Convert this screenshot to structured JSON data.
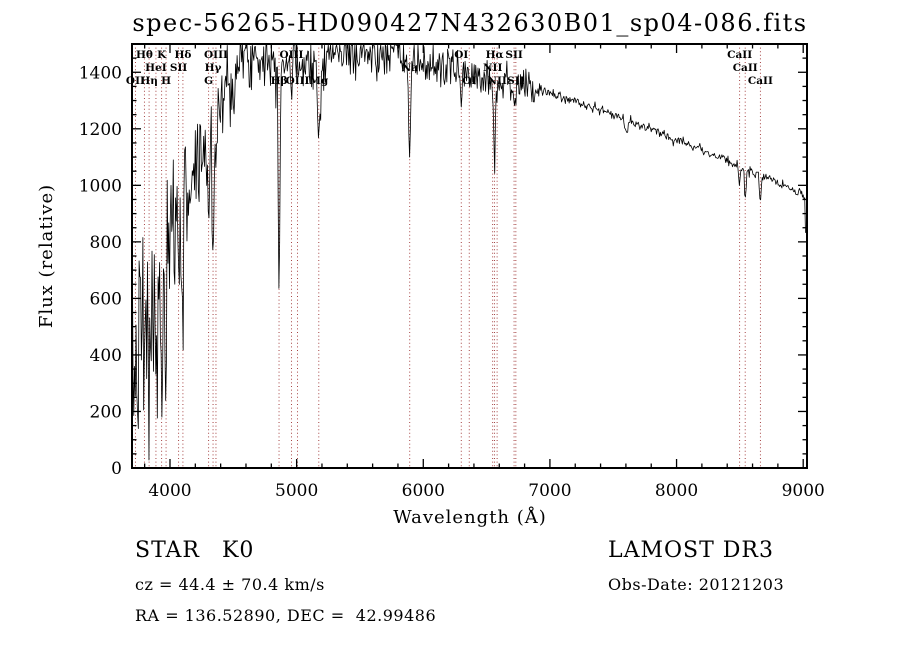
{
  "annotations": {
    "object_class": "STAR",
    "subclass": "K0",
    "survey": "LAMOST DR3",
    "cz": "cz = 44.4 ± 70.4 km/s",
    "obs_date": "Obs-Date: 20121203",
    "coordinates": "RA = 136.52890, DEC =  42.99486"
  },
  "chart_data": {
    "type": "line",
    "title": "spec-56265-HD090427N432630B01_sp04-086.fits",
    "xlabel": "Wavelength (Å)",
    "ylabel": "Flux (relative)",
    "xlim": [
      3700,
      9030
    ],
    "ylim": [
      0,
      1500
    ],
    "xticks": [
      4000,
      5000,
      6000,
      7000,
      8000,
      9000
    ],
    "yticks": [
      0,
      200,
      400,
      600,
      800,
      1000,
      1200,
      1400
    ],
    "x_minor_step": 200,
    "y_minor_step": 50,
    "grid": false,
    "legend": "none",
    "colors": {
      "spectrum": "#000000",
      "marker_line": "#9c2f2f",
      "axis": "#000000",
      "background": "#ffffff"
    },
    "spectrum": {
      "seed": 7,
      "step": 6,
      "clip": [
        3,
        1497
      ],
      "continuum": [
        [
          3700,
          310
        ],
        [
          3720,
          390
        ],
        [
          3750,
          430
        ],
        [
          3800,
          520
        ],
        [
          3850,
          540
        ],
        [
          3900,
          560
        ],
        [
          3950,
          620
        ],
        [
          4000,
          760
        ],
        [
          4050,
          880
        ],
        [
          4100,
          940
        ],
        [
          4150,
          1000
        ],
        [
          4200,
          1060
        ],
        [
          4250,
          1110
        ],
        [
          4300,
          1160
        ],
        [
          4350,
          1230
        ],
        [
          4400,
          1300
        ],
        [
          4450,
          1350
        ],
        [
          4500,
          1400
        ],
        [
          4550,
          1430
        ],
        [
          4600,
          1460
        ],
        [
          4700,
          1470
        ],
        [
          4800,
          1445
        ],
        [
          4900,
          1435
        ],
        [
          5000,
          1440
        ],
        [
          5100,
          1450
        ],
        [
          5200,
          1460
        ],
        [
          5300,
          1470
        ],
        [
          5400,
          1470
        ],
        [
          5500,
          1465
        ],
        [
          5600,
          1462
        ],
        [
          5700,
          1465
        ],
        [
          5800,
          1460
        ],
        [
          5900,
          1432
        ],
        [
          6000,
          1430
        ],
        [
          6100,
          1420
        ],
        [
          6200,
          1412
        ],
        [
          6300,
          1402
        ],
        [
          6400,
          1395
        ],
        [
          6500,
          1386
        ],
        [
          6600,
          1372
        ],
        [
          6700,
          1360
        ],
        [
          6800,
          1352
        ],
        [
          6900,
          1340
        ],
        [
          7000,
          1326
        ],
        [
          7100,
          1312
        ],
        [
          7200,
          1296
        ],
        [
          7300,
          1281
        ],
        [
          7400,
          1266
        ],
        [
          7500,
          1250
        ],
        [
          7600,
          1232
        ],
        [
          7700,
          1215
        ],
        [
          7800,
          1196
        ],
        [
          7900,
          1180
        ],
        [
          8000,
          1164
        ],
        [
          8100,
          1146
        ],
        [
          8200,
          1126
        ],
        [
          8300,
          1106
        ],
        [
          8400,
          1086
        ],
        [
          8500,
          1066
        ],
        [
          8600,
          1046
        ],
        [
          8700,
          1026
        ],
        [
          8800,
          1006
        ],
        [
          8900,
          986
        ],
        [
          9000,
          966
        ],
        [
          9006,
          958
        ],
        [
          9012,
          950
        ],
        [
          9018,
          830
        ]
      ],
      "noise": [
        [
          3700,
          185
        ],
        [
          3750,
          190
        ],
        [
          3850,
          170
        ],
        [
          3950,
          150
        ],
        [
          4050,
          130
        ],
        [
          4150,
          112
        ],
        [
          4300,
          95
        ],
        [
          4500,
          72
        ],
        [
          4700,
          56
        ],
        [
          5000,
          50
        ],
        [
          5400,
          46
        ],
        [
          5800,
          42
        ],
        [
          6200,
          38
        ],
        [
          6600,
          32
        ],
        [
          6850,
          26
        ],
        [
          6950,
          14
        ],
        [
          7000,
          9
        ],
        [
          7500,
          8
        ],
        [
          8000,
          8
        ],
        [
          8600,
          9
        ],
        [
          9000,
          7
        ],
        [
          9018,
          7
        ]
      ],
      "absorption_features": [
        {
          "center": 3727,
          "depth": 120,
          "width": 5
        },
        {
          "center": 3798,
          "depth": 260,
          "width": 6
        },
        {
          "center": 3835,
          "depth": 290,
          "width": 6
        },
        {
          "center": 3889,
          "depth": 310,
          "width": 6
        },
        {
          "center": 3934,
          "depth": 360,
          "width": 6
        },
        {
          "center": 3969,
          "depth": 360,
          "width": 6
        },
        {
          "center": 4068,
          "depth": 150,
          "width": 5
        },
        {
          "center": 4102,
          "depth": 390,
          "width": 7
        },
        {
          "center": 4305,
          "depth": 260,
          "width": 9
        },
        {
          "center": 4340,
          "depth": 430,
          "width": 7
        },
        {
          "center": 4363,
          "depth": 130,
          "width": 5
        },
        {
          "center": 4861,
          "depth": 800,
          "width": 6
        },
        {
          "center": 4959,
          "depth": 120,
          "width": 4
        },
        {
          "center": 5007,
          "depth": 150,
          "width": 4
        },
        {
          "center": 5175,
          "depth": 280,
          "width": 12
        },
        {
          "center": 5893,
          "depth": 380,
          "width": 7
        },
        {
          "center": 6300,
          "depth": 90,
          "width": 4
        },
        {
          "center": 6363,
          "depth": 70,
          "width": 4
        },
        {
          "center": 6548,
          "depth": 80,
          "width": 4
        },
        {
          "center": 6563,
          "depth": 270,
          "width": 6
        },
        {
          "center": 6583,
          "depth": 80,
          "width": 4
        },
        {
          "center": 6717,
          "depth": 70,
          "width": 4
        },
        {
          "center": 6731,
          "depth": 70,
          "width": 4
        },
        {
          "center": 6870,
          "depth": 45,
          "width": 10
        },
        {
          "center": 7605,
          "depth": 45,
          "width": 12
        },
        {
          "center": 8498,
          "depth": 70,
          "width": 5
        },
        {
          "center": 8542,
          "depth": 110,
          "width": 6
        },
        {
          "center": 8662,
          "depth": 90,
          "width": 6
        }
      ]
    },
    "line_markers": [
      {
        "label": "Hθ",
        "wavelength": 3798,
        "row": 1
      },
      {
        "label": "K",
        "wavelength": 3934,
        "row": 1
      },
      {
        "label": "Hδ",
        "wavelength": 4102,
        "row": 1
      },
      {
        "label": "OIII",
        "wavelength": 4363,
        "row": 1
      },
      {
        "label": "OIII",
        "wavelength": 4959,
        "row": 1
      },
      {
        "label": "OI",
        "wavelength": 6300,
        "row": 1
      },
      {
        "label": "Hα",
        "wavelength": 6563,
        "row": 1
      },
      {
        "label": "SII",
        "wavelength": 6717,
        "row": 1
      },
      {
        "label": "CaII",
        "wavelength": 8498,
        "row": 1
      },
      {
        "label": "HeI",
        "wavelength": 3889,
        "row": 2
      },
      {
        "label": "SII",
        "wavelength": 4068,
        "row": 2
      },
      {
        "label": "Hγ",
        "wavelength": 4340,
        "row": 2
      },
      {
        "label": "Na",
        "wavelength": 5893,
        "row": 2
      },
      {
        "label": "NII",
        "wavelength": 6548,
        "row": 2
      },
      {
        "label": "CaII",
        "wavelength": 8542,
        "row": 2
      },
      {
        "label": "OII",
        "wavelength": 3727,
        "row": 3
      },
      {
        "label": "Hη",
        "wavelength": 3835,
        "row": 3
      },
      {
        "label": "H",
        "wavelength": 3969,
        "row": 3
      },
      {
        "label": "G",
        "wavelength": 4305,
        "row": 3
      },
      {
        "label": "Hβ",
        "wavelength": 4861,
        "row": 3
      },
      {
        "label": "OIII",
        "wavelength": 5007,
        "row": 3
      },
      {
        "label": "Mg",
        "wavelength": 5175,
        "row": 3
      },
      {
        "label": "OI",
        "wavelength": 6363,
        "row": 3
      },
      {
        "label": "NII",
        "wavelength": 6583,
        "row": 3
      },
      {
        "label": "SII",
        "wavelength": 6731,
        "row": 3
      },
      {
        "label": "CaII",
        "wavelength": 8662,
        "row": 3
      }
    ]
  }
}
